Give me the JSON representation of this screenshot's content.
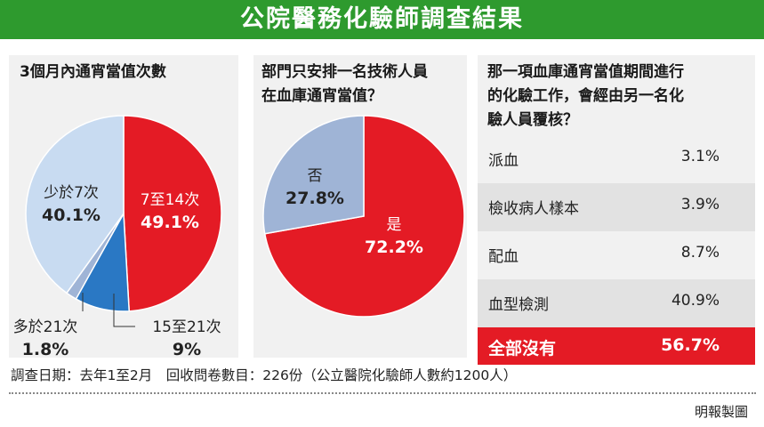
{
  "title": "公院醫務化驗師調查結果",
  "chart_data": [
    {
      "type": "pie",
      "title": "3個月內通宵當值次數",
      "categories": [
        "7至14次",
        "15至21次",
        "多於21次",
        "少於7次"
      ],
      "values": [
        49.1,
        9,
        1.8,
        40.1
      ],
      "value_labels": [
        "49.1%",
        "9%",
        "1.8%",
        "40.1%"
      ],
      "colors": [
        "#e41b25",
        "#2a78c4",
        "#9fb4d6",
        "#c8dbf1"
      ]
    },
    {
      "type": "pie",
      "title_line1": "部門只安排一名技術人員",
      "title_line2": "在血庫通宵當值？",
      "categories": [
        "是",
        "否"
      ],
      "values": [
        72.2,
        27.8
      ],
      "value_labels": [
        "72.2%",
        "27.8%"
      ],
      "colors": [
        "#e41b25",
        "#9fb4d6"
      ]
    },
    {
      "type": "table",
      "title_line1": "那一項血庫通宵當值期間進行",
      "title_line2": "的化驗工作，會經由另一名化",
      "title_line3": "驗人員覆核？",
      "rows": [
        {
          "label": "派血",
          "value": "3.1%"
        },
        {
          "label": "檢收病人樣本",
          "value": "3.9%"
        },
        {
          "label": "配血",
          "value": "8.7%"
        },
        {
          "label": "血型檢測",
          "value": "40.9%"
        },
        {
          "label": "全部沒有",
          "value": "56.7%"
        }
      ]
    }
  ],
  "footer": "調查日期：去年1至2月　回收問卷數目：226份（公立醫院化驗師人數約1200人）",
  "credit": "明報製圖"
}
